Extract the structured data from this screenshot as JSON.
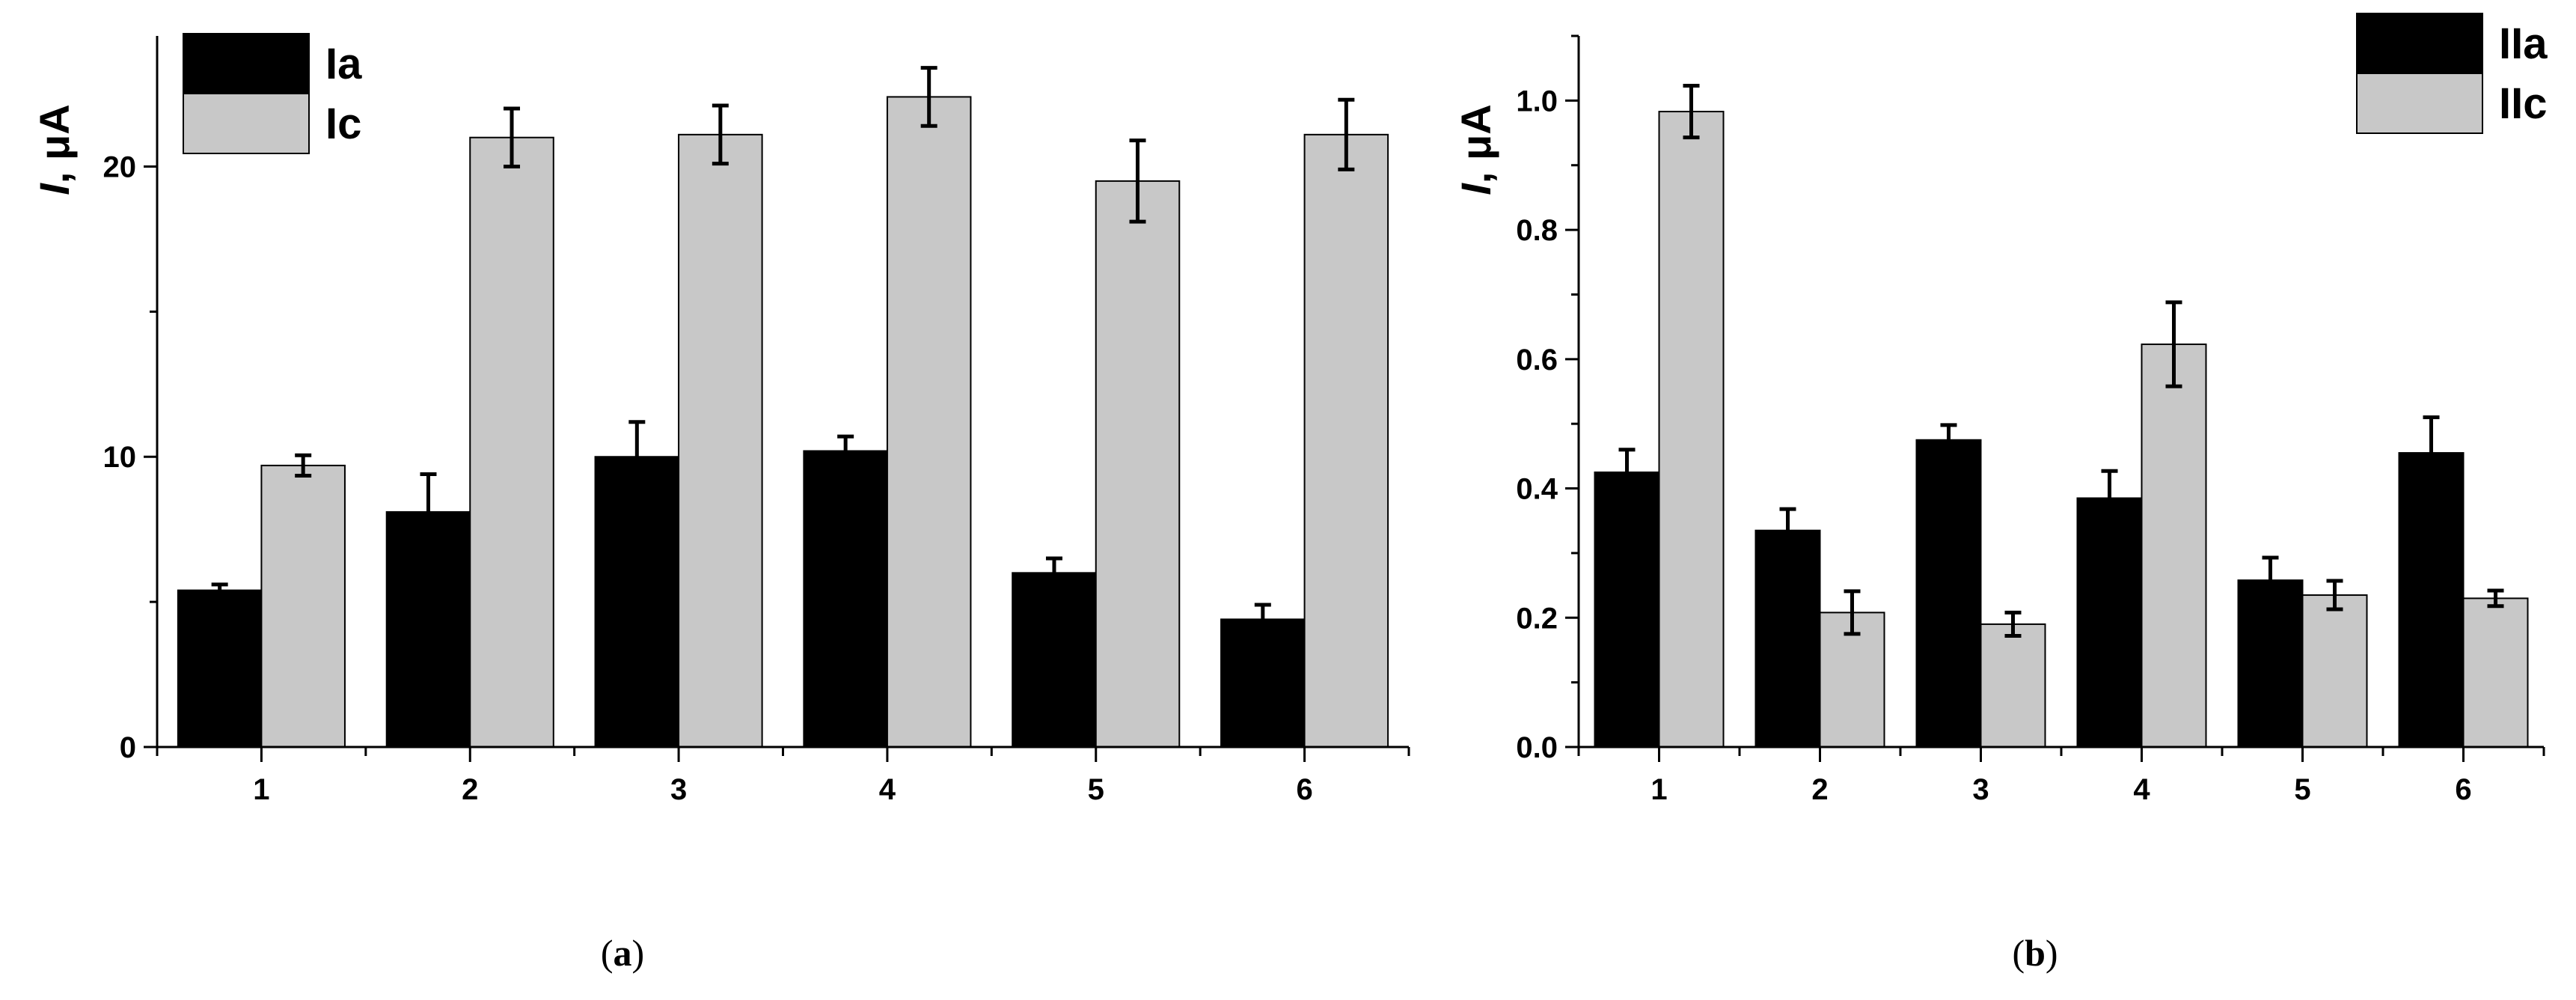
{
  "colors": {
    "series1": "#000000",
    "series2": "#c8c8c8"
  },
  "chart_data": [
    {
      "type": "bar",
      "panel_label": "(a)",
      "panel_letter": "a",
      "ylabel_italic": "I",
      "ylabel_unit": ", μA",
      "categories": [
        "1",
        "2",
        "3",
        "4",
        "5",
        "6"
      ],
      "ylim": [
        0,
        24.5
      ],
      "yticks": [
        0,
        10,
        20
      ],
      "ytick_labels": [
        "0",
        "10",
        "20"
      ],
      "ytick_step_minor": 5,
      "legend_position": "top-left",
      "series": [
        {
          "name": "Ia",
          "values": [
            5.4,
            8.1,
            10.0,
            10.2,
            6.0,
            4.4
          ],
          "errors": [
            0.2,
            1.3,
            1.2,
            0.5,
            0.5,
            0.5
          ]
        },
        {
          "name": "Ic",
          "values": [
            9.7,
            21.0,
            21.1,
            22.4,
            19.5,
            21.1
          ],
          "errors": [
            0.35,
            1.0,
            1.0,
            1.0,
            1.4,
            1.2
          ]
        }
      ]
    },
    {
      "type": "bar",
      "panel_label": "(b)",
      "panel_letter": "b",
      "ylabel_italic": "I",
      "ylabel_unit": ", μA",
      "categories": [
        "1",
        "2",
        "3",
        "4",
        "5",
        "6"
      ],
      "ylim": [
        0,
        1.1
      ],
      "yticks": [
        0,
        0.2,
        0.4,
        0.6,
        0.8,
        1.0
      ],
      "ytick_labels": [
        "0.0",
        "0.2",
        "0.4",
        "0.6",
        "0.8",
        "1.0"
      ],
      "ytick_step_minor": 0.1,
      "legend_position": "top-right",
      "series": [
        {
          "name": "IIa",
          "values": [
            0.425,
            0.335,
            0.475,
            0.385,
            0.258,
            0.455
          ],
          "errors": [
            0.035,
            0.033,
            0.023,
            0.042,
            0.035,
            0.055
          ]
        },
        {
          "name": "IIc",
          "values": [
            0.983,
            0.208,
            0.19,
            0.623,
            0.235,
            0.23
          ],
          "errors": [
            0.04,
            0.033,
            0.018,
            0.065,
            0.022,
            0.012
          ]
        }
      ]
    }
  ]
}
